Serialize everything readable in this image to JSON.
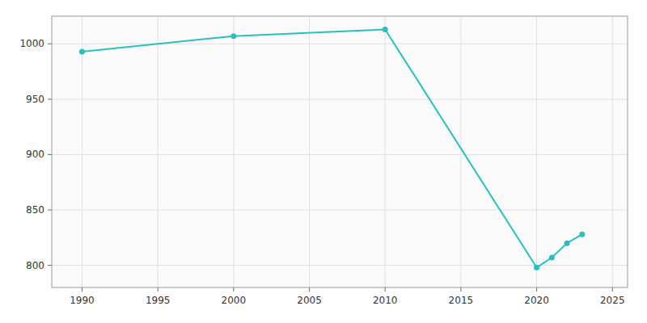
{
  "chart_data": {
    "type": "line",
    "x": [
      1990,
      2000,
      2010,
      2020,
      2021,
      2022,
      2023
    ],
    "values": [
      993,
      1007,
      1013,
      798,
      807,
      820,
      828
    ],
    "color": "#2abfbf",
    "marker": "circle",
    "xlim": [
      1988,
      2026
    ],
    "ylim": [
      780,
      1025
    ],
    "xticks": [
      1990,
      1995,
      2000,
      2005,
      2010,
      2015,
      2020,
      2025
    ],
    "yticks": [
      800,
      850,
      900,
      950,
      1000
    ],
    "grid": true
  }
}
